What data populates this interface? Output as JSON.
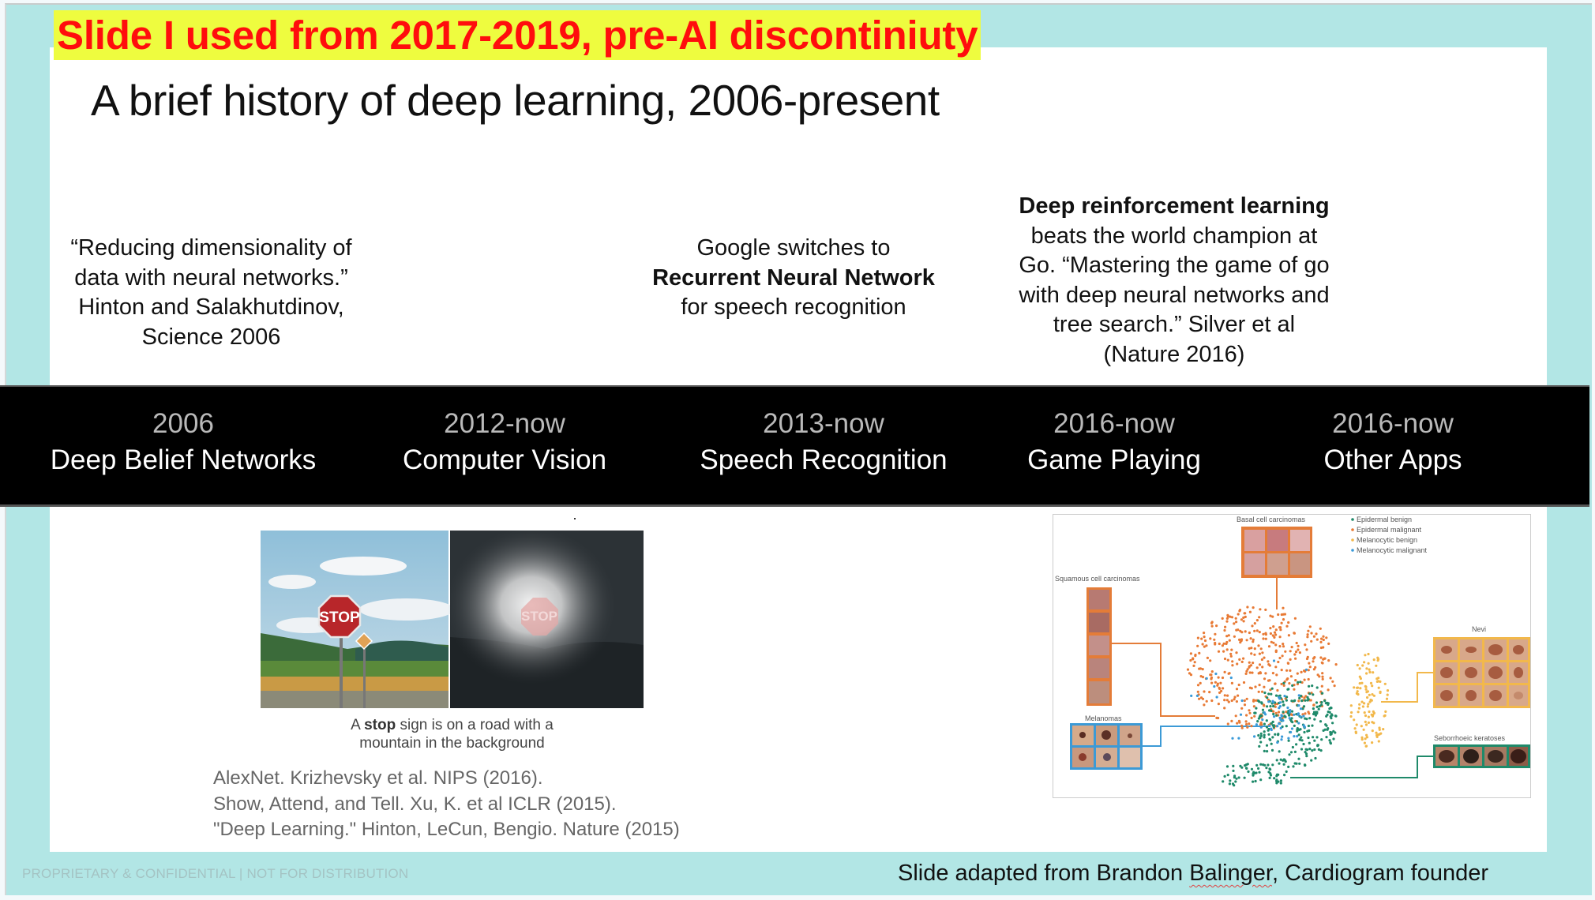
{
  "annotation_banner": "Slide I used from 2017-2019, pre-AI discontiniuty",
  "slide": {
    "title": "A brief history of deep learning, 2006-present",
    "blurbs": [
      {
        "lines": [
          "“Reducing dimensionality of",
          "data with neural networks.”",
          "Hinton and Salakhutdinov,",
          "Science 2006"
        ]
      },
      {
        "line1": "Google switches to",
        "bold": "Recurrent Neural Network",
        "line3": "for speech recognition"
      },
      {
        "bold": "Deep reinforcement learning",
        "lines": [
          "beats the world champion at",
          "Go. “Mastering the game of go",
          "with deep neural networks and",
          "tree search.”  Silver et al",
          "(Nature 2016)"
        ]
      }
    ],
    "timeline": [
      {
        "year": "2006",
        "label": "Deep Belief Networks"
      },
      {
        "year": "2012-now",
        "label": "Computer Vision"
      },
      {
        "year": "2013-now",
        "label": "Speech Recognition"
      },
      {
        "year": "2016-now",
        "label": "Game Playing"
      },
      {
        "year": "2016-now",
        "label": "Other Apps"
      }
    ],
    "image_caption": {
      "prefix": "A ",
      "bold": "stop",
      "rest_line1": " sign is on a road with a",
      "line2": "mountain in the background"
    },
    "stop_sign_text": "STOP",
    "references": [
      "AlexNet. Krizhevsky et al. NIPS (2016).",
      "Show, Attend, and Tell. Xu, K. et al ICLR (2015).",
      "\"Deep Learning.\" Hinton, LeCun, Bengio. Nature (2015)"
    ],
    "tsne_figure": {
      "legend": [
        {
          "label": "Epidermal benign",
          "color": "#1f8a6a"
        },
        {
          "label": "Epidermal malignant",
          "color": "#e87a35"
        },
        {
          "label": "Melanocytic benign",
          "color": "#f2b84b"
        },
        {
          "label": "Melanocytic malignant",
          "color": "#3a9ad9"
        }
      ],
      "groups": {
        "basal": "Basal cell carcinomas",
        "squamous": "Squamous cell carcinomas",
        "melanomas": "Melanomas",
        "nevi": "Nevi",
        "seborrhoeic": "Seborrhoeic keratoses"
      }
    }
  },
  "footer": {
    "confidential": "PROPRIETARY & CONFIDENTIAL | NOT FOR DISTRIBUTION",
    "credit_before": "Slide adapted from Brandon ",
    "credit_misspelled": "Balinger",
    "credit_after": ", Cardiogram founder"
  },
  "colors": {
    "frame_teal": "#b2e6e5",
    "banner_yellow": "#eefc3f",
    "banner_red": "#ff0d0d",
    "band_black": "#000000"
  }
}
